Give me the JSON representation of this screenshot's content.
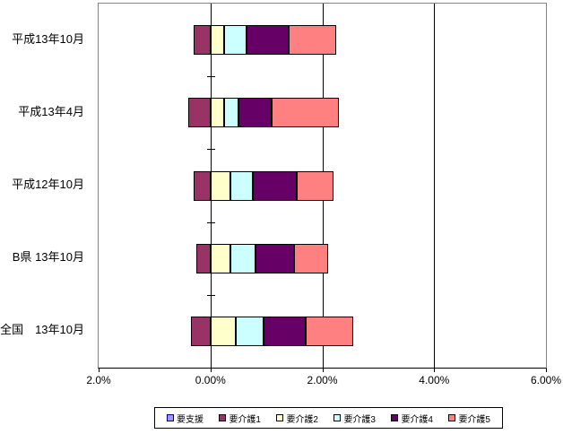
{
  "chart_data": {
    "type": "bar",
    "orientation": "horizontal",
    "stacked": true,
    "title": "",
    "categories": [
      "平成13年10月",
      "平成13年4月",
      "平成12年10月",
      "B県 13年10月",
      "全国　13年10月"
    ],
    "series": [
      {
        "name": "要支援",
        "color": "#9999FF",
        "swatch_border": "#000080",
        "values": [
          0,
          0,
          0,
          0,
          0
        ]
      },
      {
        "name": "要介護1",
        "color": "#993366",
        "swatch_border": "#000000",
        "values": [
          -0.3,
          -0.4,
          -0.3,
          -0.25,
          -0.35
        ]
      },
      {
        "name": "要介護2",
        "color": "#FFFFCC",
        "swatch_border": "#000000",
        "values": [
          0.25,
          0.25,
          0.35,
          0.35,
          0.45
        ]
      },
      {
        "name": "要介護3",
        "color": "#CCFFFF",
        "swatch_border": "#000000",
        "values": [
          0.4,
          0.25,
          0.4,
          0.45,
          0.5
        ]
      },
      {
        "name": "要介護4",
        "color": "#660066",
        "swatch_border": "#000000",
        "values": [
          0.75,
          0.6,
          0.8,
          0.7,
          0.75
        ]
      },
      {
        "name": "要介護5",
        "color": "#FF8080",
        "swatch_border": "#000000",
        "values": [
          0.85,
          1.2,
          0.65,
          0.6,
          0.85
        ]
      }
    ],
    "x_axis": {
      "min": -2,
      "max": 6,
      "ticks": [
        -2,
        0,
        2,
        4,
        6
      ],
      "tick_labels": [
        "2.0%",
        "0.00%",
        "2.00%",
        "4.00%",
        "6.00%"
      ],
      "gridlines_at": [
        0,
        2,
        4
      ]
    },
    "legend_position": "bottom",
    "grid": true,
    "plot_border_color": "#848284",
    "bar_border_color": "#000000"
  }
}
